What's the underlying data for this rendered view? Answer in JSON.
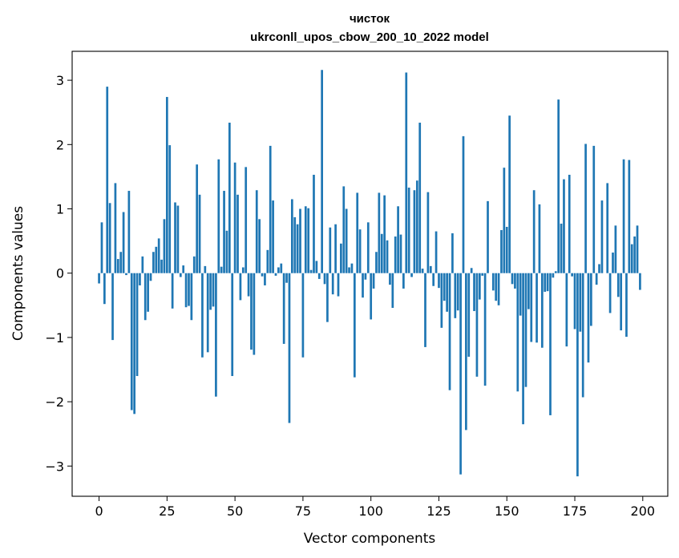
{
  "chart_data": {
    "type": "bar",
    "title_line1": "чисток",
    "title_line2": "ukrconll_upos_cbow_200_10_2022 model",
    "xlabel": "Vector components",
    "ylabel": "Components values",
    "xlim": [
      -9.9,
      209.2
    ],
    "ylim": [
      -3.47,
      3.45
    ],
    "xticks": [
      0,
      25,
      50,
      75,
      100,
      125,
      150,
      175,
      200
    ],
    "yticks": [
      -3,
      -2,
      -1,
      0,
      1,
      2,
      3
    ],
    "xtick_labels": [
      "0",
      "25",
      "50",
      "75",
      "100",
      "125",
      "150",
      "175",
      "200"
    ],
    "ytick_labels": [
      "−3",
      "−2",
      "−1",
      "0",
      "1",
      "2",
      "3"
    ],
    "grid": false,
    "legend": "none",
    "bar_color": "#1f77b4",
    "values": [
      -0.16,
      0.79,
      -0.48,
      2.9,
      1.09,
      -1.04,
      1.4,
      0.22,
      0.33,
      0.95,
      -0.03,
      1.28,
      -2.13,
      -2.19,
      -1.6,
      -0.19,
      0.26,
      -0.73,
      -0.6,
      -0.12,
      0.33,
      0.41,
      0.54,
      0.21,
      0.84,
      2.74,
      1.99,
      -0.55,
      1.1,
      1.05,
      -0.06,
      0.12,
      -0.53,
      -0.51,
      -0.73,
      0.26,
      1.69,
      1.22,
      -1.31,
      0.11,
      -1.23,
      -0.57,
      -0.52,
      -1.92,
      1.77,
      0.1,
      1.28,
      0.66,
      2.34,
      -1.6,
      1.72,
      1.22,
      -0.42,
      0.09,
      1.65,
      -0.36,
      -1.19,
      -1.27,
      1.29,
      0.84,
      -0.05,
      -0.19,
      0.36,
      1.98,
      1.13,
      -0.04,
      0.09,
      0.15,
      -1.1,
      -0.15,
      -2.33,
      1.15,
      0.87,
      0.76,
      1.0,
      -1.31,
      1.04,
      1.01,
      0.05,
      1.53,
      0.19,
      -0.09,
      3.16,
      -0.17,
      -0.76,
      0.71,
      -0.33,
      0.76,
      -0.36,
      0.46,
      1.35,
      1.0,
      0.09,
      0.15,
      -1.62,
      1.25,
      0.68,
      -0.38,
      -0.1,
      0.79,
      -0.72,
      -0.24,
      0.33,
      1.25,
      0.61,
      1.21,
      0.51,
      -0.18,
      -0.54,
      0.57,
      1.04,
      0.6,
      -0.24,
      3.12,
      1.33,
      -0.06,
      1.29,
      1.44,
      2.34,
      0.07,
      -1.15,
      1.26,
      0.11,
      -0.2,
      0.65,
      -0.23,
      -0.85,
      -0.43,
      -0.6,
      -1.82,
      0.62,
      -0.7,
      -0.58,
      -3.13,
      2.13,
      -2.44,
      -1.3,
      0.08,
      -0.59,
      -1.61,
      -0.41,
      -0.04,
      -1.75,
      1.12,
      0.0,
      -0.27,
      -0.43,
      -0.5,
      0.67,
      1.64,
      0.72,
      2.45,
      -0.17,
      -0.24,
      -1.84,
      -0.66,
      -2.35,
      -1.77,
      -0.56,
      -1.07,
      1.29,
      -1.08,
      1.07,
      -1.16,
      -0.29,
      -0.28,
      -2.21,
      -0.07,
      0.03,
      2.7,
      0.77,
      1.46,
      -1.14,
      1.53,
      -0.05,
      -0.87,
      -3.16,
      -0.91,
      -1.93,
      2.01,
      -1.39,
      -0.82,
      1.98,
      -0.18,
      0.14,
      1.13,
      0.0,
      1.4,
      -0.62,
      0.32,
      0.74,
      -0.37,
      -0.89,
      1.77,
      -0.99,
      1.76,
      0.45,
      0.57,
      0.74,
      -0.26
    ]
  }
}
